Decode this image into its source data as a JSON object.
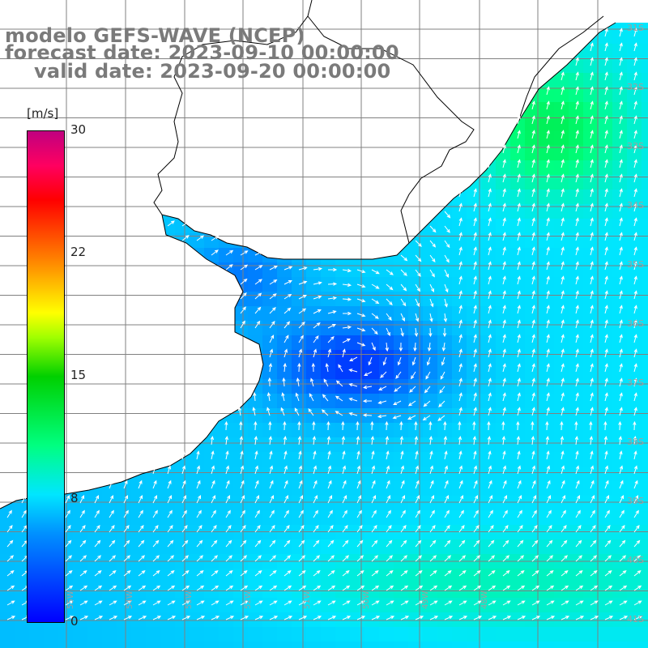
{
  "header": {
    "line1": "modelo GEFS-WAVE (NCEP)",
    "line2": "forecast date: 2023-09-10 00:00:00",
    "line3": "valid date: 2023-09-20 00:00:00"
  },
  "colorbar": {
    "unit": "[m/s]",
    "ticks": [
      "30",
      "22",
      "15",
      "8",
      "0"
    ],
    "min": 0,
    "max": 30,
    "colors": [
      "#0000ff",
      "#0090ff",
      "#00e6ff",
      "#00ff80",
      "#00d000",
      "#ffff00",
      "#ff8000",
      "#ff0000",
      "#c00080"
    ]
  },
  "map": {
    "land_color": "#ffffff",
    "grid_color": "#808080",
    "coast_color": "#000000",
    "vector_color": "#ffffff",
    "lat_labels": [
      "31S",
      "32S",
      "33S",
      "34S",
      "35S",
      "36S",
      "37S",
      "38S",
      "39S",
      "40S",
      "41S"
    ],
    "lon_labels": [
      "55W",
      "54W",
      "53W",
      "52W",
      "51W",
      "50W",
      "49W",
      "48W"
    ]
  }
}
